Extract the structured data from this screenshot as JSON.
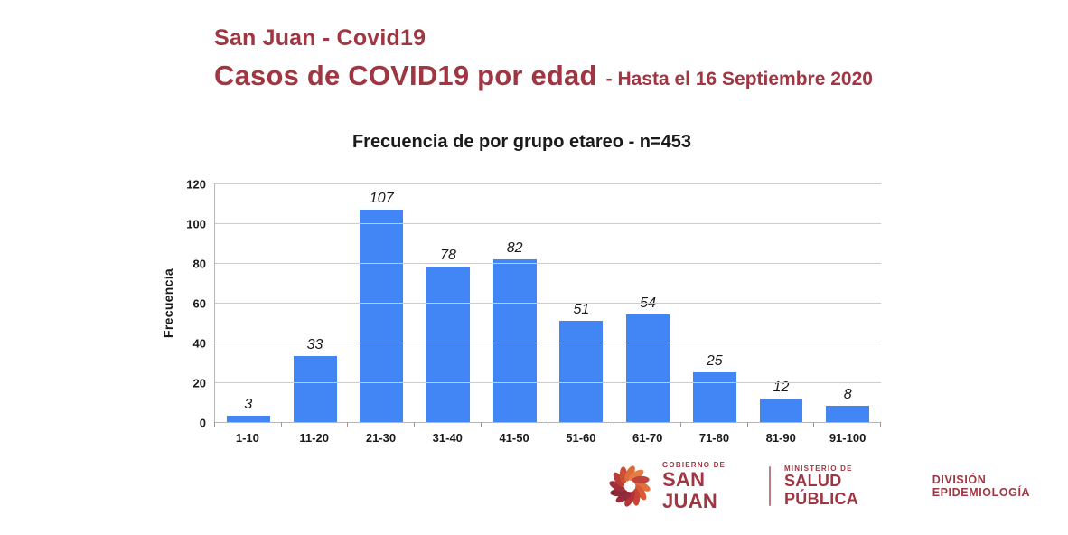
{
  "colors": {
    "brand_red": "#A03641",
    "bar_blue": "#4285F4",
    "gridline": "#CCCCCC",
    "axis_line": "#B7B7B7",
    "text_black": "#1A1A1A"
  },
  "header": {
    "line1": "San Juan - Covid19",
    "line2": "Casos de COVID19 por edad",
    "line2_suffix": "- Hasta el 16 Septiembre 2020"
  },
  "chart_data": {
    "type": "bar",
    "title": "Frecuencia de por grupo etareo - n=453",
    "categories": [
      "1-10",
      "11-20",
      "21-30",
      "31-40",
      "41-50",
      "51-60",
      "61-70",
      "71-80",
      "81-90",
      "91-100"
    ],
    "values": [
      3,
      33,
      107,
      78,
      82,
      51,
      54,
      25,
      12,
      8
    ],
    "xlabel": "",
    "ylabel": "Frecuencia",
    "ylim": [
      0,
      120
    ],
    "yticks": [
      0,
      20,
      40,
      60,
      80,
      100,
      120
    ],
    "grid": true,
    "legend": "none",
    "bar_color": "#4285F4",
    "data_labels": "shown-italic-above-bars"
  },
  "footer": {
    "logo": {
      "icon": "san-juan-pinwheel-logo-icon",
      "top_label": "GOBIERNO DE",
      "name": "SAN JUAN",
      "petal_colors": [
        "#E2703E",
        "#D85A36",
        "#C84334",
        "#B23439",
        "#97293A",
        "#8C2A38",
        "#9E2F3B",
        "#B83D36",
        "#CC4F35",
        "#DD6B3B",
        "#E67E44",
        "#C0433C"
      ]
    },
    "ministry": {
      "top_label": "MINISTERIO DE",
      "name": "SALUD PÚBLICA"
    },
    "division": "DIVISIÓN EPIDEMIOLOGÍA"
  }
}
